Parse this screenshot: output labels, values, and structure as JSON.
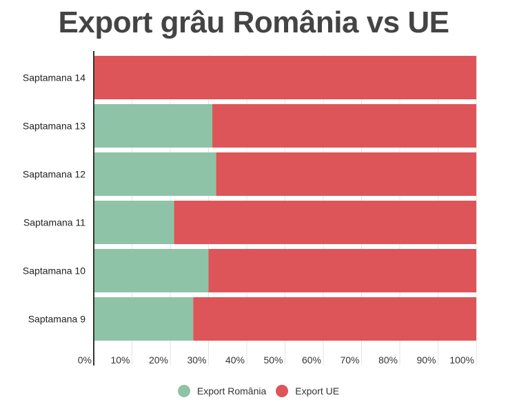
{
  "title": "Export grâu România vs UE",
  "chart_data": {
    "type": "bar",
    "orientation": "horizontal",
    "stacked": "percent",
    "categories": [
      "Saptamana 14",
      "Saptamana 13",
      "Saptamana 12",
      "Saptamana 11",
      "Saptamana 10",
      "Saptamana 9"
    ],
    "series": [
      {
        "name": "Export România",
        "color": "#8fc3a7",
        "values": [
          0,
          31,
          32,
          21,
          30,
          26
        ]
      },
      {
        "name": "Export UE",
        "color": "#dd5558",
        "values": [
          100,
          69,
          68,
          79,
          70,
          74
        ]
      }
    ],
    "xlim": [
      0,
      100
    ],
    "x_ticks": [
      "0%",
      "10%",
      "20%",
      "30%",
      "40%",
      "50%",
      "60%",
      "70%",
      "80%",
      "90%",
      "100%"
    ],
    "grid": true,
    "legend_position": "bottom"
  }
}
